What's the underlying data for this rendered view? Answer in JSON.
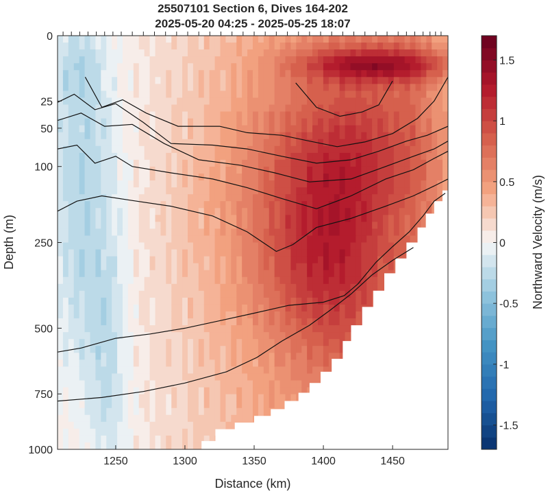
{
  "chart_data": {
    "type": "heatmap",
    "title": "25507101 Section 6, Dives 164-202",
    "subtitle": "2025-05-20 04:25 - 2025-05-25 18:07",
    "xlabel": "Distance (km)",
    "ylabel": "Depth (m)",
    "colorbar_label": "Northward Velocity (m/s)",
    "xlim": [
      1208,
      1490
    ],
    "x_ticks": [
      1250,
      1300,
      1350,
      1400,
      1450
    ],
    "y_scale": "sqrt",
    "ylim": [
      0,
      1000
    ],
    "y_reversed": true,
    "y_ticks": [
      0,
      25,
      50,
      100,
      250,
      500,
      750,
      1000
    ],
    "clim": [
      -1.7,
      1.7
    ],
    "colorbar_ticks": [
      -1.5,
      -1,
      -0.5,
      0,
      0.5,
      1,
      1.5
    ],
    "colorbar_tick_labels": [
      "-1.5",
      "-1",
      "-0.5",
      "0",
      "0.5",
      "1",
      "1.5"
    ],
    "colormap": [
      "#08306b",
      "#2166ac",
      "#4393c3",
      "#92c5de",
      "#f7f7f7",
      "#f4a582",
      "#d6604d",
      "#b2182b",
      "#67001f"
    ],
    "dive_positions_km": [
      1212,
      1218,
      1224,
      1230,
      1236,
      1242,
      1248,
      1254,
      1262,
      1270,
      1278,
      1286,
      1294,
      1302,
      1310,
      1318,
      1326,
      1334,
      1342,
      1350,
      1358,
      1366,
      1374,
      1382,
      1390,
      1398,
      1406,
      1414,
      1422,
      1430,
      1438,
      1446,
      1454,
      1460,
      1466,
      1472,
      1477,
      1481,
      1485
    ],
    "bottom_depth": [
      {
        "x": 1208,
        "depth": 1000
      },
      {
        "x": 1300,
        "depth": 1000
      },
      {
        "x": 1312,
        "depth": 960
      },
      {
        "x": 1322,
        "depth": 905
      },
      {
        "x": 1336,
        "depth": 875
      },
      {
        "x": 1350,
        "depth": 845
      },
      {
        "x": 1362,
        "depth": 815
      },
      {
        "x": 1372,
        "depth": 780
      },
      {
        "x": 1382,
        "depth": 745
      },
      {
        "x": 1390,
        "depth": 705
      },
      {
        "x": 1398,
        "depth": 660
      },
      {
        "x": 1406,
        "depth": 610
      },
      {
        "x": 1414,
        "depth": 545
      },
      {
        "x": 1420,
        "depth": 490
      },
      {
        "x": 1428,
        "depth": 430
      },
      {
        "x": 1436,
        "depth": 380
      },
      {
        "x": 1444,
        "depth": 330
      },
      {
        "x": 1452,
        "depth": 290
      },
      {
        "x": 1460,
        "depth": 250
      },
      {
        "x": 1468,
        "depth": 215
      },
      {
        "x": 1474,
        "depth": 185
      },
      {
        "x": 1480,
        "depth": 160
      },
      {
        "x": 1486,
        "depth": 140
      },
      {
        "x": 1490,
        "depth": 130
      }
    ],
    "velocity_features": [
      {
        "x": 1440,
        "depth": 5,
        "sx": 40,
        "sy": 0.9,
        "amp": 0.75
      },
      {
        "x": 1400,
        "depth": 300,
        "sx": 30,
        "sy": 5,
        "amp": 0.45
      },
      {
        "x": 1420,
        "depth": 80,
        "sx": 45,
        "sy": 4,
        "amp": 0.35
      },
      {
        "x": 1380,
        "depth": 200,
        "sx": 55,
        "sy": 7,
        "amp": 0.25
      },
      {
        "x": 1225,
        "depth": 80,
        "sx": 18,
        "sy": 8,
        "amp": -0.32
      },
      {
        "x": 1222,
        "depth": 5,
        "sx": 12,
        "sy": 2,
        "amp": -0.15
      },
      {
        "x": 1245,
        "depth": 700,
        "sx": 10,
        "sy": 8,
        "amp": -0.22
      },
      {
        "x": 1228,
        "depth": 450,
        "sx": 15,
        "sy": 6,
        "amp": -0.15
      }
    ],
    "isopycnals": [
      [
        {
          "x": 1380,
          "depth": 13
        },
        {
          "x": 1395,
          "depth": 30
        },
        {
          "x": 1412,
          "depth": 38
        },
        {
          "x": 1428,
          "depth": 34
        },
        {
          "x": 1440,
          "depth": 28
        },
        {
          "x": 1450,
          "depth": 12
        }
      ],
      [
        {
          "x": 1228,
          "depth": 10
        },
        {
          "x": 1240,
          "depth": 30
        },
        {
          "x": 1255,
          "depth": 24
        },
        {
          "x": 1272,
          "depth": 35
        },
        {
          "x": 1295,
          "depth": 48
        },
        {
          "x": 1325,
          "depth": 48
        },
        {
          "x": 1345,
          "depth": 55
        },
        {
          "x": 1370,
          "depth": 58
        },
        {
          "x": 1390,
          "depth": 65
        },
        {
          "x": 1410,
          "depth": 72
        },
        {
          "x": 1430,
          "depth": 66
        },
        {
          "x": 1450,
          "depth": 56
        },
        {
          "x": 1468,
          "depth": 40
        },
        {
          "x": 1480,
          "depth": 25
        },
        {
          "x": 1490,
          "depth": 10
        }
      ],
      [
        {
          "x": 1208,
          "depth": 26
        },
        {
          "x": 1220,
          "depth": 20
        },
        {
          "x": 1235,
          "depth": 32
        },
        {
          "x": 1250,
          "depth": 27
        },
        {
          "x": 1270,
          "depth": 44
        },
        {
          "x": 1290,
          "depth": 68
        },
        {
          "x": 1320,
          "depth": 70
        },
        {
          "x": 1345,
          "depth": 75
        },
        {
          "x": 1370,
          "depth": 85
        },
        {
          "x": 1395,
          "depth": 95
        },
        {
          "x": 1420,
          "depth": 90
        },
        {
          "x": 1440,
          "depth": 78
        },
        {
          "x": 1460,
          "depth": 65
        },
        {
          "x": 1475,
          "depth": 58
        },
        {
          "x": 1490,
          "depth": 48
        }
      ],
      [
        {
          "x": 1208,
          "depth": 42
        },
        {
          "x": 1225,
          "depth": 35
        },
        {
          "x": 1242,
          "depth": 48
        },
        {
          "x": 1262,
          "depth": 46
        },
        {
          "x": 1285,
          "depth": 68
        },
        {
          "x": 1310,
          "depth": 90
        },
        {
          "x": 1340,
          "depth": 98
        },
        {
          "x": 1365,
          "depth": 110
        },
        {
          "x": 1390,
          "depth": 125
        },
        {
          "x": 1420,
          "depth": 120
        },
        {
          "x": 1445,
          "depth": 100
        },
        {
          "x": 1465,
          "depth": 85
        },
        {
          "x": 1480,
          "depth": 75
        },
        {
          "x": 1490,
          "depth": 65
        }
      ],
      [
        {
          "x": 1208,
          "depth": 75
        },
        {
          "x": 1222,
          "depth": 70
        },
        {
          "x": 1235,
          "depth": 95
        },
        {
          "x": 1250,
          "depth": 85
        },
        {
          "x": 1262,
          "depth": 100
        },
        {
          "x": 1290,
          "depth": 110
        },
        {
          "x": 1320,
          "depth": 120
        },
        {
          "x": 1345,
          "depth": 135
        },
        {
          "x": 1370,
          "depth": 155
        },
        {
          "x": 1395,
          "depth": 175
        },
        {
          "x": 1420,
          "depth": 150
        },
        {
          "x": 1445,
          "depth": 120
        },
        {
          "x": 1465,
          "depth": 105
        },
        {
          "x": 1480,
          "depth": 88
        },
        {
          "x": 1490,
          "depth": 78
        }
      ],
      [
        {
          "x": 1208,
          "depth": 180
        },
        {
          "x": 1222,
          "depth": 160
        },
        {
          "x": 1240,
          "depth": 150
        },
        {
          "x": 1260,
          "depth": 158
        },
        {
          "x": 1290,
          "depth": 170
        },
        {
          "x": 1320,
          "depth": 190
        },
        {
          "x": 1345,
          "depth": 225
        },
        {
          "x": 1366,
          "depth": 272
        },
        {
          "x": 1378,
          "depth": 255
        },
        {
          "x": 1395,
          "depth": 215
        },
        {
          "x": 1420,
          "depth": 195
        },
        {
          "x": 1445,
          "depth": 170
        },
        {
          "x": 1465,
          "depth": 150
        },
        {
          "x": 1480,
          "depth": 132
        },
        {
          "x": 1490,
          "depth": 120
        }
      ],
      [
        {
          "x": 1208,
          "depth": 585
        },
        {
          "x": 1225,
          "depth": 570
        },
        {
          "x": 1250,
          "depth": 535
        },
        {
          "x": 1275,
          "depth": 520
        },
        {
          "x": 1300,
          "depth": 500
        },
        {
          "x": 1325,
          "depth": 475
        },
        {
          "x": 1350,
          "depth": 450
        },
        {
          "x": 1375,
          "depth": 425
        },
        {
          "x": 1400,
          "depth": 415
        },
        {
          "x": 1415,
          "depth": 395
        },
        {
          "x": 1425,
          "depth": 360
        },
        {
          "x": 1438,
          "depth": 300
        },
        {
          "x": 1450,
          "depth": 260
        },
        {
          "x": 1462,
          "depth": 225
        },
        {
          "x": 1472,
          "depth": 190
        },
        {
          "x": 1480,
          "depth": 160
        },
        {
          "x": 1488,
          "depth": 145
        }
      ],
      [
        {
          "x": 1208,
          "depth": 780
        },
        {
          "x": 1240,
          "depth": 765
        },
        {
          "x": 1270,
          "depth": 740
        },
        {
          "x": 1300,
          "depth": 705
        },
        {
          "x": 1330,
          "depth": 660
        },
        {
          "x": 1352,
          "depth": 605
        },
        {
          "x": 1370,
          "depth": 545
        },
        {
          "x": 1390,
          "depth": 490
        },
        {
          "x": 1405,
          "depth": 440
        },
        {
          "x": 1420,
          "depth": 390
        },
        {
          "x": 1435,
          "depth": 335
        },
        {
          "x": 1450,
          "depth": 295
        },
        {
          "x": 1465,
          "depth": 262
        }
      ]
    ]
  }
}
